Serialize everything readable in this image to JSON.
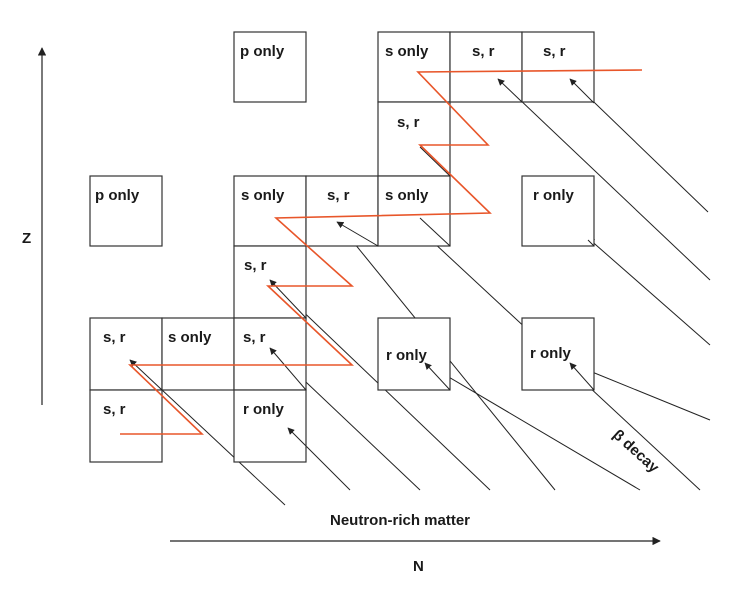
{
  "cells": [
    {
      "id": "c1",
      "label": "p only"
    },
    {
      "id": "c2",
      "label": "s only"
    },
    {
      "id": "c3",
      "label": "s, r"
    },
    {
      "id": "c4",
      "label": "s, r"
    },
    {
      "id": "c5",
      "label": "s, r"
    },
    {
      "id": "c6",
      "label": "p only"
    },
    {
      "id": "c7",
      "label": "s only"
    },
    {
      "id": "c8",
      "label": "s, r"
    },
    {
      "id": "c9",
      "label": "s only"
    },
    {
      "id": "c10",
      "label": "r only"
    },
    {
      "id": "c11",
      "label": "s, r"
    },
    {
      "id": "c12",
      "label": "s, r"
    },
    {
      "id": "c13",
      "label": "s only"
    },
    {
      "id": "c14",
      "label": "s, r"
    },
    {
      "id": "c15",
      "label": "r only"
    },
    {
      "id": "c16",
      "label": "r only"
    },
    {
      "id": "c17",
      "label": "s, r"
    },
    {
      "id": "c18",
      "label": "r only"
    }
  ],
  "labels": {
    "y_axis": "Z",
    "x_axis": "N",
    "region": "Neutron-rich matter",
    "decay": "β decay"
  },
  "colors": {
    "process_path": "#e8562a",
    "decay_lines": "#222222",
    "boxes": "#333333"
  }
}
